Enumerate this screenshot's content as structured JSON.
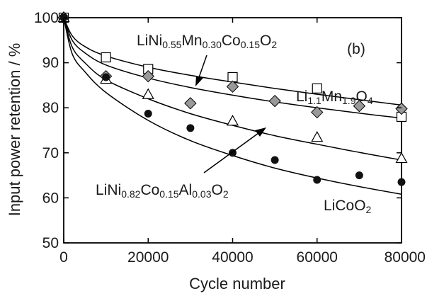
{
  "chart_data": {
    "type": "scatter",
    "title": "",
    "panel_label": "(b)",
    "xlabel": "Cycle number",
    "ylabel": "Input power retention / %",
    "xlim": [
      0,
      80000
    ],
    "ylim": [
      50,
      100
    ],
    "xticks": [
      0,
      20000,
      40000,
      60000,
      80000
    ],
    "yticks": [
      50,
      60,
      70,
      80,
      90,
      100
    ],
    "xtick_labels": [
      "0",
      "20000",
      "40000",
      "60000",
      "80000"
    ],
    "ytick_labels": [
      "50",
      "60",
      "70",
      "80",
      "90",
      "100"
    ],
    "grid": false,
    "legend": "none",
    "series": [
      {
        "name": "Li1.1Mn1.9O4",
        "label_parts": [
          {
            "text": "Li",
            "sub": false
          },
          {
            "text": "1.1",
            "sub": true
          },
          {
            "text": "Mn",
            "sub": false
          },
          {
            "text": "1.9",
            "sub": true
          },
          {
            "text": "O",
            "sub": false
          },
          {
            "text": "4",
            "sub": true
          }
        ],
        "marker": "open-square",
        "color": "#ffffff",
        "x": [
          0,
          10000,
          20000,
          40000,
          60000,
          80000
        ],
        "y": [
          100,
          91.2,
          88.6,
          86.8,
          84.3,
          78.0
        ],
        "fit": [
          [
            0,
            100
          ],
          [
            2000,
            96.0
          ],
          [
            5000,
            93.6
          ],
          [
            10000,
            91.5
          ],
          [
            20000,
            89.0
          ],
          [
            30000,
            87.2
          ],
          [
            40000,
            85.7
          ],
          [
            50000,
            84.3
          ],
          [
            60000,
            83.0
          ],
          [
            70000,
            81.8
          ],
          [
            80000,
            80.6
          ]
        ]
      },
      {
        "name": "LiNi0.55Mn0.30Co0.15O2",
        "label_parts": [
          {
            "text": "LiNi",
            "sub": false
          },
          {
            "text": "0.55",
            "sub": true
          },
          {
            "text": "Mn",
            "sub": false
          },
          {
            "text": "0.30",
            "sub": true
          },
          {
            "text": "Co",
            "sub": false
          },
          {
            "text": "0.15",
            "sub": true
          },
          {
            "text": "O",
            "sub": false
          },
          {
            "text": "2",
            "sub": true
          }
        ],
        "marker": "diamond",
        "color": "#999999",
        "x": [
          0,
          10000,
          20000,
          30000,
          40000,
          50000,
          60000,
          70000,
          80000
        ],
        "y": [
          100,
          87.0,
          87.0,
          81.0,
          84.7,
          81.5,
          79.0,
          80.4,
          79.8
        ],
        "fit": [
          [
            0,
            100
          ],
          [
            2000,
            95.0
          ],
          [
            5000,
            92.2
          ],
          [
            10000,
            89.5
          ],
          [
            20000,
            86.6
          ],
          [
            30000,
            84.5
          ],
          [
            40000,
            82.8
          ],
          [
            50000,
            81.3
          ],
          [
            60000,
            80.0
          ],
          [
            70000,
            78.8
          ],
          [
            80000,
            77.7
          ]
        ]
      },
      {
        "name": "LiNi0.82Co0.15Al0.03O2",
        "label_parts": [
          {
            "text": "LiNi",
            "sub": false
          },
          {
            "text": "0.82",
            "sub": true
          },
          {
            "text": "Co",
            "sub": false
          },
          {
            "text": "0.15",
            "sub": true
          },
          {
            "text": "Al",
            "sub": false
          },
          {
            "text": "0.03",
            "sub": true
          },
          {
            "text": "O",
            "sub": false
          },
          {
            "text": "2",
            "sub": true
          }
        ],
        "marker": "open-triangle",
        "color": "#ffffff",
        "x": [
          0,
          10000,
          20000,
          40000,
          60000,
          80000
        ],
        "y": [
          100,
          86.3,
          82.9,
          77.0,
          73.4,
          68.7
        ],
        "fit": [
          [
            0,
            100
          ],
          [
            2000,
            93.5
          ],
          [
            5000,
            90.0
          ],
          [
            10000,
            86.2
          ],
          [
            20000,
            82.0
          ],
          [
            30000,
            78.7
          ],
          [
            40000,
            76.1
          ],
          [
            50000,
            73.8
          ],
          [
            60000,
            71.9
          ],
          [
            70000,
            70.1
          ],
          [
            80000,
            68.4
          ]
        ]
      },
      {
        "name": "LiCoO2",
        "label_parts": [
          {
            "text": "LiCoO",
            "sub": false
          },
          {
            "text": "2",
            "sub": true
          }
        ],
        "marker": "filled-circle",
        "color": "#111111",
        "x": [
          0,
          10000,
          20000,
          30000,
          40000,
          50000,
          60000,
          70000,
          80000
        ],
        "y": [
          100,
          86.8,
          78.7,
          75.5,
          70.0,
          68.4,
          64.0,
          65.0,
          63.5
        ],
        "fit": [
          [
            0,
            100
          ],
          [
            2000,
            92.0
          ],
          [
            5000,
            88.0
          ],
          [
            10000,
            83.4
          ],
          [
            20000,
            77.2
          ],
          [
            30000,
            72.7
          ],
          [
            40000,
            69.4
          ],
          [
            50000,
            66.6
          ],
          [
            60000,
            64.4
          ],
          [
            70000,
            62.5
          ],
          [
            80000,
            60.8
          ]
        ]
      }
    ]
  }
}
